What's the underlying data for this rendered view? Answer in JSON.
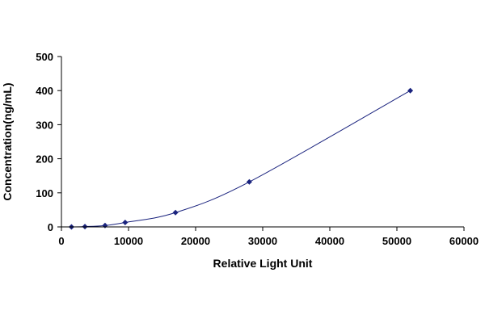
{
  "chart_data": {
    "type": "scatter",
    "xlabel": "Relative Light Unit",
    "ylabel": "Concentration(ng/mL)",
    "xlim": [
      0,
      60000
    ],
    "ylim": [
      0,
      500
    ],
    "xticks": [
      "0",
      "10000",
      "20000",
      "30000",
      "40000",
      "50000",
      "60000"
    ],
    "yticks": [
      "0",
      "100",
      "200",
      "300",
      "400",
      "500"
    ],
    "grid": false,
    "series": [
      {
        "x": [
          1500,
          3500,
          6500,
          9500,
          17000,
          28000,
          52000
        ],
        "y": [
          0,
          1,
          4,
          13,
          42,
          132,
          400
        ],
        "color": "#1a237e",
        "fit_line": true
      }
    ]
  }
}
